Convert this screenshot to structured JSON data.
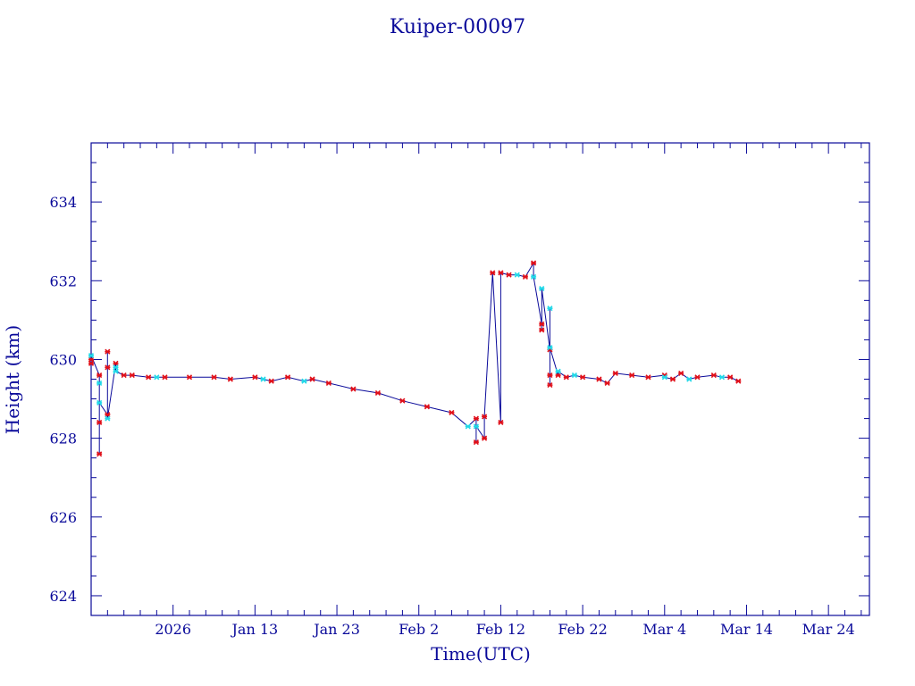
{
  "chart_data": {
    "type": "line",
    "title": "Kuiper-00097",
    "xlabel": "Time(UTC)",
    "ylabel": "Height (km)",
    "ylim": [
      623.5,
      635.5
    ],
    "xlim": [
      "2025-12-24",
      "2026-03-29"
    ],
    "x_ticks": [
      {
        "date": "2026-01-03",
        "label": "2026"
      },
      {
        "date": "2026-01-13",
        "label": "Jan 13"
      },
      {
        "date": "2026-01-23",
        "label": "Jan 23"
      },
      {
        "date": "2026-02-02",
        "label": "Feb  2"
      },
      {
        "date": "2026-02-12",
        "label": "Feb 12"
      },
      {
        "date": "2026-02-22",
        "label": "Feb 22"
      },
      {
        "date": "2026-03-04",
        "label": "Mar  4"
      },
      {
        "date": "2026-03-14",
        "label": "Mar 14"
      },
      {
        "date": "2026-03-24",
        "label": "Mar 24"
      }
    ],
    "y_ticks": [
      624,
      626,
      628,
      630,
      632,
      634
    ],
    "grid": false,
    "colors": {
      "axis": "#0a0a9a",
      "line": "#0a0a9a",
      "markers_red": "#e0101a",
      "markers_cyan": "#22d8e8"
    },
    "series": [
      {
        "marker_color": "red",
        "points": [
          [
            "2025-12-24",
            630.0
          ],
          [
            "2025-12-24",
            629.9
          ],
          [
            "2025-12-25",
            629.6
          ],
          [
            "2025-12-25",
            628.4
          ],
          [
            "2025-12-25",
            627.6
          ],
          [
            "2025-12-26",
            628.6
          ],
          [
            "2025-12-26",
            629.8
          ],
          [
            "2025-12-26",
            630.2
          ],
          [
            "2025-12-27",
            629.9
          ],
          [
            "2025-12-28",
            629.6
          ],
          [
            "2025-12-29",
            629.6
          ],
          [
            "2025-12-31",
            629.55
          ],
          [
            "2026-01-02",
            629.55
          ],
          [
            "2026-01-05",
            629.55
          ],
          [
            "2026-01-08",
            629.55
          ],
          [
            "2026-01-10",
            629.5
          ],
          [
            "2026-01-13",
            629.55
          ],
          [
            "2026-01-15",
            629.45
          ],
          [
            "2026-01-17",
            629.55
          ],
          [
            "2026-01-20",
            629.5
          ],
          [
            "2026-01-22",
            629.4
          ],
          [
            "2026-01-25",
            629.25
          ],
          [
            "2026-01-28",
            629.15
          ],
          [
            "2026-01-31",
            628.95
          ],
          [
            "2026-02-03",
            628.8
          ],
          [
            "2026-02-06",
            628.65
          ],
          [
            "2026-02-09",
            628.5
          ],
          [
            "2026-02-12",
            628.4
          ],
          [
            "2026-02-09",
            627.9
          ],
          [
            "2026-02-10",
            628.0
          ],
          [
            "2026-02-10",
            628.55
          ],
          [
            "2026-02-11",
            632.2
          ],
          [
            "2026-02-12",
            632.2
          ],
          [
            "2026-02-13",
            632.15
          ],
          [
            "2026-02-15",
            632.1
          ],
          [
            "2026-02-16",
            632.45
          ],
          [
            "2026-02-17",
            630.9
          ],
          [
            "2026-02-17",
            630.75
          ],
          [
            "2026-02-18",
            630.25
          ],
          [
            "2026-02-18",
            629.6
          ],
          [
            "2026-02-18",
            629.35
          ],
          [
            "2026-02-19",
            629.6
          ],
          [
            "2026-02-20",
            629.55
          ],
          [
            "2026-02-22",
            629.55
          ],
          [
            "2026-02-24",
            629.5
          ],
          [
            "2026-02-25",
            629.4
          ],
          [
            "2026-02-26",
            629.65
          ],
          [
            "2026-02-28",
            629.6
          ],
          [
            "2026-03-02",
            629.55
          ],
          [
            "2026-03-04",
            629.6
          ],
          [
            "2026-03-05",
            629.5
          ],
          [
            "2026-03-06",
            629.65
          ],
          [
            "2026-03-08",
            629.55
          ],
          [
            "2026-03-10",
            629.6
          ],
          [
            "2026-03-12",
            629.55
          ],
          [
            "2026-03-13",
            629.45
          ]
        ]
      },
      {
        "marker_color": "cyan",
        "points": [
          [
            "2025-12-24",
            630.1
          ],
          [
            "2025-12-25",
            629.4
          ],
          [
            "2025-12-25",
            628.9
          ],
          [
            "2025-12-26",
            628.5
          ],
          [
            "2025-12-27",
            629.8
          ],
          [
            "2025-12-27",
            629.7
          ],
          [
            "2026-01-01",
            629.55
          ],
          [
            "2026-01-14",
            629.5
          ],
          [
            "2026-01-19",
            629.45
          ],
          [
            "2026-02-08",
            628.3
          ],
          [
            "2026-02-09",
            628.3
          ],
          [
            "2026-02-14",
            632.15
          ],
          [
            "2026-02-16",
            632.1
          ],
          [
            "2026-02-17",
            631.8
          ],
          [
            "2026-02-18",
            631.3
          ],
          [
            "2026-02-18",
            630.3
          ],
          [
            "2026-02-19",
            629.7
          ],
          [
            "2026-02-21",
            629.6
          ],
          [
            "2026-03-04",
            629.55
          ],
          [
            "2026-03-07",
            629.5
          ],
          [
            "2026-03-11",
            629.55
          ]
        ]
      }
    ]
  }
}
